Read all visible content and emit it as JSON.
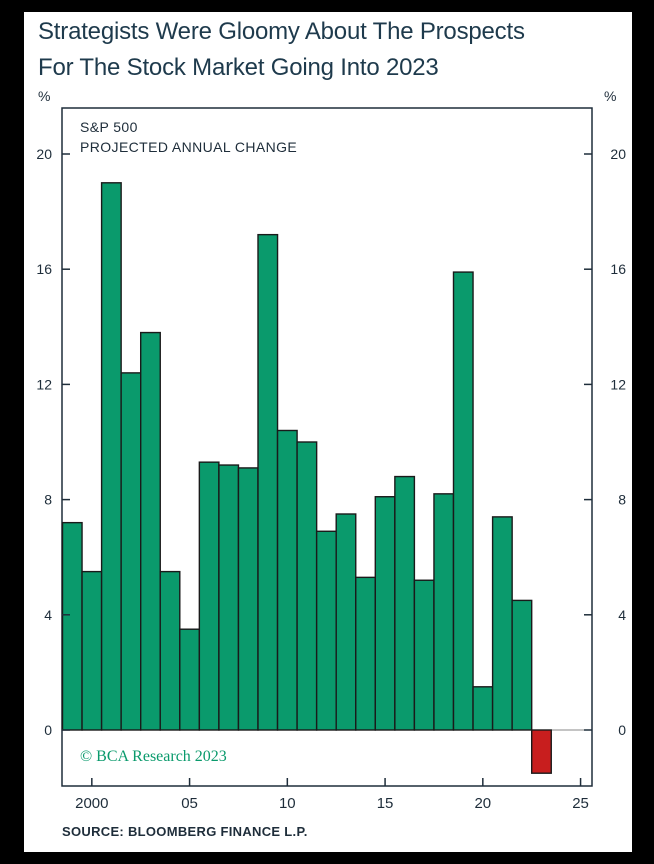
{
  "title_line1": "Strategists Were Gloomy About The Prospects",
  "title_line2": "For The Stock Market Going Into 2023",
  "unit_left": "%",
  "unit_right": "%",
  "source": "SOURCE: BLOOMBERG FINANCE L.P.",
  "watermark": "© BCA Research 2023",
  "colors": {
    "positive": "#0a9a6c",
    "negative": "#c81e1e",
    "outline": "#1a1a1a",
    "text": "#1e2d3a"
  },
  "chart_data": {
    "type": "bar",
    "title": "Strategists Were Gloomy About The Prospects For The Stock Market Going Into 2023",
    "inset_label": [
      "S&P 500",
      "PROJECTED ANNUAL CHANGE"
    ],
    "ylabel": "%",
    "ylim": [
      -2,
      21.5
    ],
    "yticks": [
      0,
      4,
      8,
      12,
      16,
      20
    ],
    "xlim": [
      1999,
      2025
    ],
    "xticks": [
      2000,
      2005,
      2010,
      2015,
      2020,
      2025
    ],
    "xtick_labels": [
      "2000",
      "05",
      "10",
      "15",
      "20",
      "25"
    ],
    "grid": false,
    "x": [
      1999,
      2000,
      2001,
      2002,
      2003,
      2004,
      2005,
      2006,
      2007,
      2008,
      2009,
      2010,
      2011,
      2012,
      2013,
      2014,
      2015,
      2016,
      2017,
      2018,
      2019,
      2020,
      2021,
      2022,
      2023
    ],
    "values": [
      7.2,
      5.5,
      19.0,
      12.4,
      13.8,
      5.5,
      3.5,
      9.3,
      9.2,
      9.1,
      17.2,
      10.4,
      10.0,
      6.9,
      7.5,
      5.3,
      8.1,
      8.8,
      5.2,
      8.2,
      15.9,
      1.5,
      7.4,
      4.5,
      -1.5
    ]
  }
}
